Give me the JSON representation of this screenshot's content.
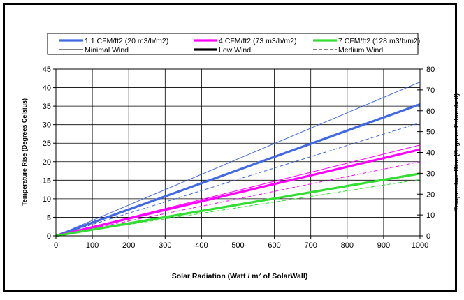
{
  "chart_data": {
    "type": "line",
    "x_label_parts": {
      "before": "Solar Radiation (Watt / m",
      "sup": "2",
      "after": " of SolarWall)"
    },
    "y_left_label": "Temperature Rise (Degrees Celsius)",
    "y_right_label": "Temperature Rise (Degrees Fahrenheit)",
    "xlim": [
      0,
      1000
    ],
    "ylim_left": [
      0,
      45
    ],
    "ylim_right": [
      0,
      80
    ],
    "x_ticks": [
      "0",
      "100",
      "200",
      "300",
      "400",
      "500",
      "600",
      "700",
      "800",
      "900",
      "1000"
    ],
    "y_left_ticks": [
      "0",
      "5",
      "10",
      "15",
      "20",
      "25",
      "30",
      "35",
      "40",
      "45"
    ],
    "y_right_ticks": [
      "0",
      "10",
      "20",
      "30",
      "40",
      "50",
      "60",
      "70",
      "80"
    ],
    "grid": true,
    "legend": [
      {
        "label": "1.1 CFM/ft2 (20 m3/h/m2)",
        "color": "#4169E1",
        "style": "thick"
      },
      {
        "label": "4 CFM/ft2 (73 m3/h/m2)",
        "color": "#FF00FF",
        "style": "thick"
      },
      {
        "label": "7 CFM/ft2 (128 m3/h/m2)",
        "color": "#33DD33",
        "style": "thick"
      },
      {
        "label": "Minimal Wind",
        "color": "#000000",
        "style": "thin"
      },
      {
        "label": "Low Wind",
        "color": "#000000",
        "style": "thick"
      },
      {
        "label": "Medium Wind",
        "color": "#000000",
        "style": "dashed"
      }
    ],
    "series": [
      {
        "airflow": "1.1 CFM/ft2 (20 m3/h/m2)",
        "wind": "Minimal Wind",
        "color": "#4169E1",
        "style": "thin",
        "x": [
          0,
          1000
        ],
        "y": [
          0,
          41.5
        ]
      },
      {
        "airflow": "1.1 CFM/ft2 (20 m3/h/m2)",
        "wind": "Low Wind",
        "color": "#4169E1",
        "style": "thick",
        "x": [
          0,
          1000
        ],
        "y": [
          0,
          35.5
        ]
      },
      {
        "airflow": "1.1 CFM/ft2 (20 m3/h/m2)",
        "wind": "Medium Wind",
        "color": "#4169E1",
        "style": "dashed",
        "x": [
          0,
          1000
        ],
        "y": [
          0,
          30.5
        ]
      },
      {
        "airflow": "4 CFM/ft2 (73 m3/h/m2)",
        "wind": "Minimal Wind",
        "color": "#FF00FF",
        "style": "thin",
        "x": [
          0,
          1000
        ],
        "y": [
          0,
          24.5
        ]
      },
      {
        "airflow": "4 CFM/ft2 (73 m3/h/m2)",
        "wind": "Low Wind",
        "color": "#FF00FF",
        "style": "thick",
        "x": [
          0,
          1000
        ],
        "y": [
          0,
          23.3
        ]
      },
      {
        "airflow": "4 CFM/ft2 (73 m3/h/m2)",
        "wind": "Medium Wind",
        "color": "#FF00FF",
        "style": "dashed",
        "x": [
          0,
          1000
        ],
        "y": [
          0,
          20.0
        ]
      },
      {
        "airflow": "7 CFM/ft2 (128 m3/h/m2)",
        "wind": "Minimal Wind",
        "color": "#33DD33",
        "style": "thin",
        "x": [
          0,
          1000
        ],
        "y": [
          0,
          17.0
        ]
      },
      {
        "airflow": "7 CFM/ft2 (128 m3/h/m2)",
        "wind": "Low Wind",
        "color": "#33DD33",
        "style": "thick",
        "x": [
          0,
          1000
        ],
        "y": [
          0,
          16.8
        ]
      },
      {
        "airflow": "7 CFM/ft2 (128 m3/h/m2)",
        "wind": "Medium Wind",
        "color": "#33DD33",
        "style": "dashed",
        "x": [
          0,
          1000
        ],
        "y": [
          0,
          15.2
        ]
      }
    ]
  }
}
